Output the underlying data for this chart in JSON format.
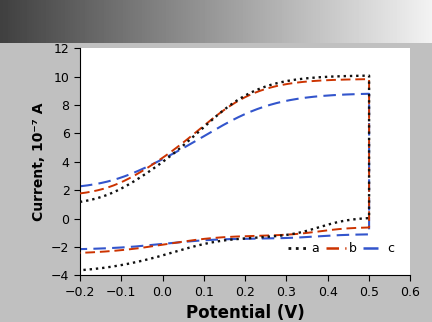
{
  "xlabel": "Potential (V)",
  "ylabel": "Current, 10⁻⁷ A",
  "xlim": [
    -0.2,
    0.6
  ],
  "ylim": [
    -4,
    12
  ],
  "xticks": [
    -0.2,
    -0.1,
    0.0,
    0.1,
    0.2,
    0.3,
    0.4,
    0.5,
    0.6
  ],
  "yticks": [
    -4,
    -2,
    0,
    2,
    4,
    6,
    8,
    10,
    12
  ],
  "curve_a_color": "#111111",
  "curve_b_color": "#cc3300",
  "curve_c_color": "#3355cc",
  "outer_bg": "#c0c0c0",
  "plot_bg": "#ffffff",
  "xlabel_fontsize": 12,
  "ylabel_fontsize": 10,
  "tick_fontsize": 9
}
